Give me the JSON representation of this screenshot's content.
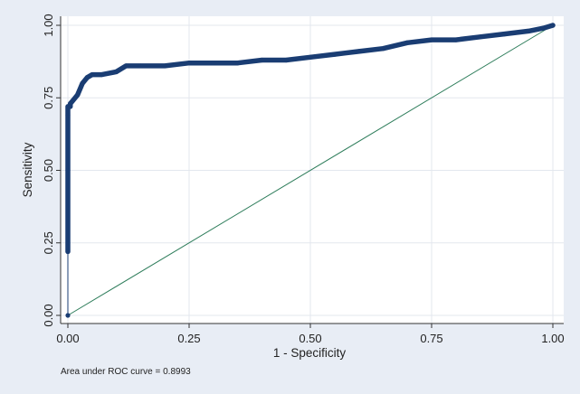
{
  "chart_data": {
    "type": "line",
    "xlabel": "1 - Specificity",
    "ylabel": "Sensitivity",
    "xlim": [
      0,
      1
    ],
    "ylim": [
      0,
      1
    ],
    "x_ticks": [
      "0.00",
      "0.25",
      "0.50",
      "0.75",
      "1.00"
    ],
    "y_ticks": [
      "0.00",
      "0.25",
      "0.50",
      "0.75",
      "1.00"
    ],
    "grid": true,
    "note": "Area under ROC curve = 0.8993",
    "colors": {
      "roc": "#1a3d73",
      "reference": "#2e7d5b",
      "background": "#e8edf5",
      "plot": "#ffffff",
      "grid": "#e3e7ee"
    },
    "series": [
      {
        "x": [
          0,
          0,
          0,
          0,
          0,
          0.005,
          0.005,
          0.01,
          0.02,
          0.03,
          0.04,
          0.05,
          0.07,
          0.1,
          0.12,
          0.15,
          0.2,
          0.25,
          0.3,
          0.35,
          0.4,
          0.45,
          0.5,
          0.55,
          0.6,
          0.65,
          0.7,
          0.75,
          0.8,
          0.85,
          0.9,
          0.95,
          0.98,
          1.0
        ],
        "y": [
          0,
          0.22,
          0.5,
          0.69,
          0.72,
          0.72,
          0.73,
          0.74,
          0.76,
          0.8,
          0.82,
          0.83,
          0.83,
          0.84,
          0.86,
          0.86,
          0.86,
          0.87,
          0.87,
          0.87,
          0.88,
          0.88,
          0.89,
          0.9,
          0.91,
          0.92,
          0.94,
          0.95,
          0.95,
          0.96,
          0.97,
          0.98,
          0.99,
          1.0
        ]
      },
      {
        "x": [
          0,
          1
        ],
        "y": [
          0,
          1
        ]
      }
    ]
  }
}
